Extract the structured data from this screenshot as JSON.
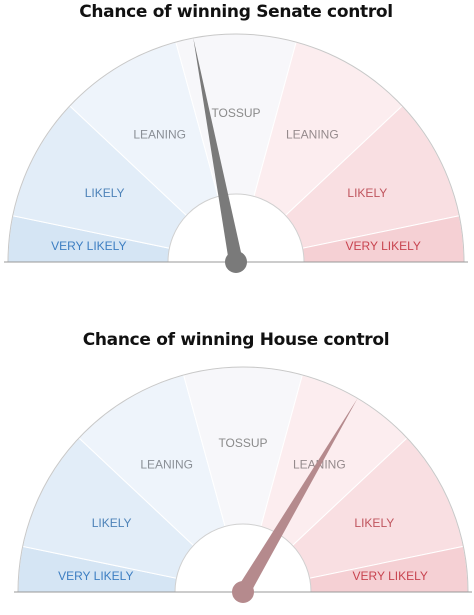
{
  "chart_data": [
    {
      "type": "gauge",
      "title": "Chance of winning Senate control",
      "xlim": [
        0,
        100
      ],
      "value": 44,
      "needle_color": "#7a7a7a",
      "bands": [
        {
          "label": "VERY LIKELY",
          "from": 0,
          "to": 6.5,
          "color": "#d5e5f4",
          "text_color": "#3d7ec2"
        },
        {
          "label": "LIKELY",
          "from": 6.5,
          "to": 24,
          "color": "#e2edf8",
          "text_color": "#4d82b8"
        },
        {
          "label": "LEANING",
          "from": 24,
          "to": 41.5,
          "color": "#eef4fb",
          "text_color": "#8a8f96"
        },
        {
          "label": "TOSSUP",
          "from": 41.5,
          "to": 58.5,
          "color": "#f7f7fa",
          "text_color": "#8a8a8a"
        },
        {
          "label": "LEANING",
          "from": 58.5,
          "to": 76,
          "color": "#fcedef",
          "text_color": "#958a8c"
        },
        {
          "label": "LIKELY",
          "from": 76,
          "to": 93.5,
          "color": "#f9dfe2",
          "text_color": "#c0555e"
        },
        {
          "label": "VERY LIKELY",
          "from": 93.5,
          "to": 100,
          "color": "#f5d0d4",
          "text_color": "#c8434f"
        }
      ]
    },
    {
      "type": "gauge",
      "title": "Chance of winning House control",
      "xlim": [
        0,
        100
      ],
      "value": 67,
      "needle_color": "#b58a8d",
      "bands": [
        {
          "label": "VERY LIKELY",
          "from": 0,
          "to": 6.5,
          "color": "#d5e5f4",
          "text_color": "#3d7ec2"
        },
        {
          "label": "LIKELY",
          "from": 6.5,
          "to": 24,
          "color": "#e2edf8",
          "text_color": "#4d82b8"
        },
        {
          "label": "LEANING",
          "from": 24,
          "to": 41.5,
          "color": "#eef4fb",
          "text_color": "#8a8f96"
        },
        {
          "label": "TOSSUP",
          "from": 41.5,
          "to": 58.5,
          "color": "#f7f7fa",
          "text_color": "#8a8a8a"
        },
        {
          "label": "LEANING",
          "from": 58.5,
          "to": 76,
          "color": "#fcedef",
          "text_color": "#958a8c"
        },
        {
          "label": "LIKELY",
          "from": 76,
          "to": 93.5,
          "color": "#f9dfe2",
          "text_color": "#c0555e"
        },
        {
          "label": "VERY LIKELY",
          "from": 93.5,
          "to": 100,
          "color": "#f5d0d4",
          "text_color": "#c8434f"
        }
      ]
    }
  ]
}
